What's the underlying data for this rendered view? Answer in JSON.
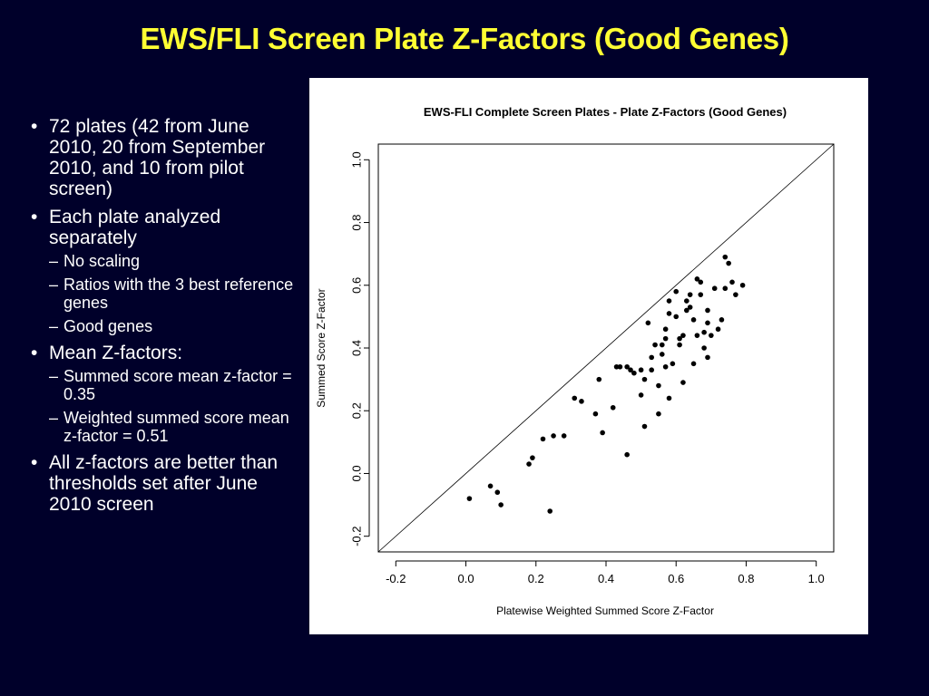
{
  "slide": {
    "title": "EWS/FLI Screen Plate Z-Factors (Good Genes)"
  },
  "bullets": [
    {
      "text": "72 plates (42 from June 2010, 20 from September 2010, and 10 from pilot screen)",
      "sub": []
    },
    {
      "text": "Each plate analyzed separately",
      "sub": [
        "No scaling",
        "Ratios with the 3 best reference genes",
        "Good genes"
      ]
    },
    {
      "text": "Mean Z-factors:",
      "sub": [
        "Summed score mean z-factor = 0.35",
        "Weighted summed score mean z-factor = 0.51"
      ]
    },
    {
      "text": "All z-factors are better than thresholds set after June 2010 screen",
      "sub": []
    }
  ],
  "chart_data": {
    "type": "scatter",
    "title": "EWS-FLI Complete Screen Plates - Plate Z-Factors (Good Genes)",
    "xlabel": "Platewise Weighted Summed Score Z-Factor",
    "ylabel": "Summed Score Z-Factor",
    "xlim": [
      -0.25,
      1.05
    ],
    "ylim": [
      -0.25,
      1.05
    ],
    "xticks": [
      -0.2,
      0.0,
      0.2,
      0.4,
      0.6,
      0.8,
      1.0
    ],
    "yticks": [
      -0.2,
      0.0,
      0.2,
      0.4,
      0.6,
      0.8,
      1.0
    ],
    "xtick_labels": [
      "-0.2",
      "0.0",
      "0.2",
      "0.4",
      "0.6",
      "0.8",
      "1.0"
    ],
    "ytick_labels": [
      "-0.2",
      "0.0",
      "0.2",
      "0.4",
      "0.6",
      "0.8",
      "1.0"
    ],
    "reference_line": "y = x",
    "grid": false,
    "point_color": "#000000",
    "points": [
      [
        0.01,
        -0.08
      ],
      [
        0.07,
        -0.04
      ],
      [
        0.09,
        -0.06
      ],
      [
        0.1,
        -0.1
      ],
      [
        0.18,
        0.03
      ],
      [
        0.19,
        0.05
      ],
      [
        0.22,
        0.11
      ],
      [
        0.25,
        0.12
      ],
      [
        0.28,
        0.12
      ],
      [
        0.24,
        -0.12
      ],
      [
        0.31,
        0.24
      ],
      [
        0.33,
        0.23
      ],
      [
        0.37,
        0.19
      ],
      [
        0.38,
        0.3
      ],
      [
        0.39,
        0.13
      ],
      [
        0.42,
        0.21
      ],
      [
        0.43,
        0.34
      ],
      [
        0.44,
        0.34
      ],
      [
        0.46,
        0.06
      ],
      [
        0.46,
        0.34
      ],
      [
        0.47,
        0.33
      ],
      [
        0.48,
        0.32
      ],
      [
        0.5,
        0.25
      ],
      [
        0.5,
        0.33
      ],
      [
        0.51,
        0.3
      ],
      [
        0.51,
        0.15
      ],
      [
        0.52,
        0.48
      ],
      [
        0.53,
        0.33
      ],
      [
        0.53,
        0.37
      ],
      [
        0.55,
        0.28
      ],
      [
        0.55,
        0.19
      ],
      [
        0.56,
        0.41
      ],
      [
        0.56,
        0.38
      ],
      [
        0.57,
        0.43
      ],
      [
        0.57,
        0.46
      ],
      [
        0.57,
        0.34
      ],
      [
        0.58,
        0.24
      ],
      [
        0.58,
        0.55
      ],
      [
        0.58,
        0.51
      ],
      [
        0.59,
        0.35
      ],
      [
        0.6,
        0.5
      ],
      [
        0.61,
        0.43
      ],
      [
        0.61,
        0.41
      ],
      [
        0.62,
        0.44
      ],
      [
        0.62,
        0.29
      ],
      [
        0.63,
        0.55
      ],
      [
        0.63,
        0.52
      ],
      [
        0.64,
        0.53
      ],
      [
        0.64,
        0.57
      ],
      [
        0.65,
        0.49
      ],
      [
        0.65,
        0.35
      ],
      [
        0.66,
        0.44
      ],
      [
        0.67,
        0.61
      ],
      [
        0.67,
        0.57
      ],
      [
        0.68,
        0.45
      ],
      [
        0.68,
        0.4
      ],
      [
        0.69,
        0.37
      ],
      [
        0.69,
        0.52
      ],
      [
        0.69,
        0.48
      ],
      [
        0.7,
        0.44
      ],
      [
        0.71,
        0.59
      ],
      [
        0.72,
        0.46
      ],
      [
        0.73,
        0.49
      ],
      [
        0.74,
        0.69
      ],
      [
        0.74,
        0.59
      ],
      [
        0.75,
        0.67
      ],
      [
        0.76,
        0.61
      ],
      [
        0.77,
        0.57
      ],
      [
        0.79,
        0.6
      ],
      [
        0.66,
        0.62
      ],
      [
        0.6,
        0.58
      ],
      [
        0.54,
        0.41
      ]
    ]
  }
}
